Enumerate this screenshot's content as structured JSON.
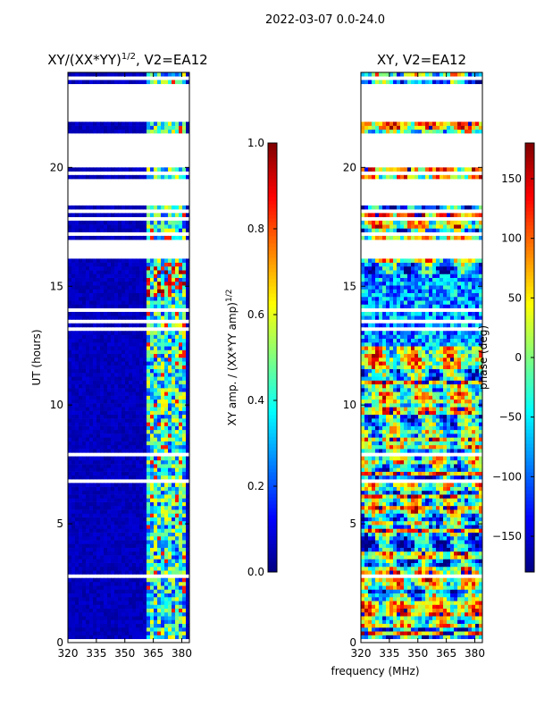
{
  "suptitle": "2022-03-07 0.0-24.0",
  "xlabel": "frequency (MHz)",
  "chart_data": [
    {
      "type": "heatmap",
      "title_prefix": "XY/(XX*YY)",
      "title_exp": "1/2",
      "title_suffix": ", V2=EA12",
      "ylabel": "UT (hours)",
      "xlim": [
        320,
        384
      ],
      "ylim": [
        0,
        24
      ],
      "xticks": [
        "320",
        "335",
        "350",
        "365",
        "380"
      ],
      "xtick_values": [
        320,
        335,
        350,
        365,
        380
      ],
      "yticks": [
        "0",
        "5",
        "10",
        "15",
        "20"
      ],
      "ytick_values": [
        0,
        5,
        10,
        15,
        20
      ],
      "colorbar": {
        "label_prefix": "XY amp. / (XX*YY amp)",
        "label_exp": "1/2",
        "range": [
          0.0,
          1.0
        ],
        "ticks": [
          "0.0",
          "0.2",
          "0.4",
          "0.6",
          "0.8",
          "1.0"
        ],
        "tick_values": [
          0.0,
          0.2,
          0.4,
          0.6,
          0.8,
          1.0
        ],
        "colormap": "jet"
      },
      "data_gaps_ut": [
        [
          18.4,
          19.5
        ],
        [
          20.2,
          21.5
        ],
        [
          22.0,
          23.6
        ]
      ]
    },
    {
      "type": "heatmap",
      "title": "XY, V2=EA12",
      "xlim": [
        320,
        384
      ],
      "ylim": [
        0,
        24
      ],
      "xticks": [
        "320",
        "335",
        "350",
        "365",
        "380"
      ],
      "xtick_values": [
        320,
        335,
        350,
        365,
        380
      ],
      "yticks": [
        "0",
        "5",
        "10",
        "15",
        "20"
      ],
      "ytick_values": [
        0,
        5,
        10,
        15,
        20
      ],
      "colorbar": {
        "label": "phase (deg)",
        "range": [
          -180,
          180
        ],
        "ticks": [
          "−150",
          "−100",
          "−50",
          "0",
          "50",
          "100",
          "150"
        ],
        "tick_values": [
          -150,
          -100,
          -50,
          0,
          50,
          100,
          150
        ],
        "colormap": "jet"
      },
      "data_gaps_ut": [
        [
          18.4,
          19.5
        ],
        [
          20.2,
          21.5
        ],
        [
          22.0,
          23.6
        ]
      ]
    }
  ]
}
